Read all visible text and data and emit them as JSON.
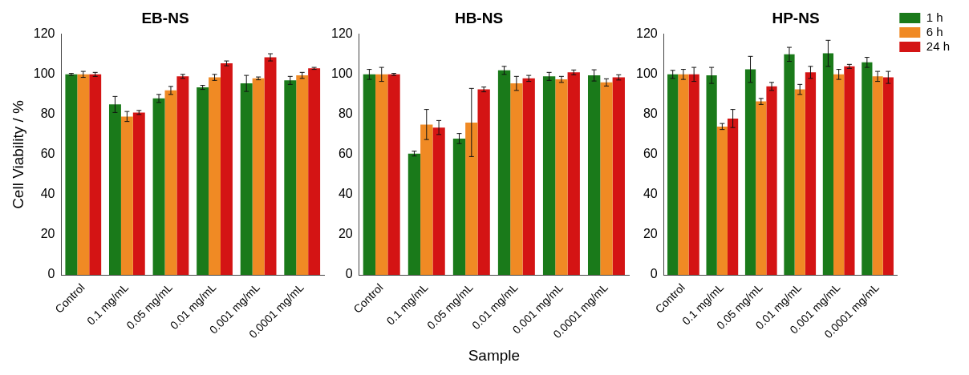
{
  "chart_data": [
    {
      "type": "bar",
      "title": "EB-NS",
      "ylabel": "Cell Viability / %",
      "categories": [
        "Control",
        "0.1 mg/mL",
        "0.05 mg/mL",
        "0.01 mg/mL",
        "0.001 mg/mL",
        "0.0001 mg/mL"
      ],
      "ylim": [
        0,
        120
      ],
      "yticks": [
        0,
        20,
        40,
        60,
        80,
        100,
        120
      ],
      "grid": false,
      "legend": false,
      "series": [
        {
          "color": "#1a7a1a",
          "values": [
            100,
            85,
            88,
            93.5,
            95.5,
            97
          ],
          "errors": [
            0.5,
            4,
            2,
            1,
            4,
            2
          ]
        },
        {
          "color": "#f08a24",
          "values": [
            100,
            79,
            92,
            98.5,
            98,
            99.5
          ],
          "errors": [
            1.5,
            2.5,
            2,
            1.5,
            0.7,
            1.5
          ]
        },
        {
          "color": "#d41414",
          "values": [
            100,
            81,
            99,
            105.5,
            108.5,
            103
          ],
          "errors": [
            1,
            1,
            1,
            1.2,
            1.8,
            0.5
          ]
        }
      ]
    },
    {
      "type": "bar",
      "title": "HB-NS",
      "xlabel": "Sample",
      "categories": [
        "Control",
        "0.1 mg/mL",
        "0.05 mg/mL",
        "0.01 mg/mL",
        "0.001 mg/mL",
        "0.0001 mg/mL"
      ],
      "ylim": [
        0,
        120
      ],
      "yticks": [
        0,
        20,
        40,
        60,
        80,
        100,
        120
      ],
      "grid": false,
      "legend": false,
      "series": [
        {
          "color": "#1a7a1a",
          "values": [
            100,
            60.5,
            68,
            102,
            99,
            99.5
          ],
          "errors": [
            2.5,
            1.2,
            2.5,
            2,
            2,
            2.8
          ]
        },
        {
          "color": "#f08a24",
          "values": [
            100,
            75,
            76,
            95.5,
            97.5,
            96
          ],
          "errors": [
            3.5,
            7.5,
            17,
            3.5,
            1.5,
            1.8
          ]
        },
        {
          "color": "#d41414",
          "values": [
            100,
            73.5,
            92.5,
            98,
            101,
            98.5
          ],
          "errors": [
            0.5,
            3.5,
            1.2,
            1.5,
            1.2,
            1.3
          ]
        }
      ]
    },
    {
      "type": "bar",
      "title": "HP-NS",
      "categories": [
        "Control",
        "0.1 mg/mL",
        "0.05 mg/mL",
        "0.01 mg/mL",
        "0.001 mg/mL",
        "0.0001 mg/mL"
      ],
      "ylim": [
        0,
        120
      ],
      "yticks": [
        0,
        20,
        40,
        60,
        80,
        100,
        120
      ],
      "grid": false,
      "legend": "top right",
      "series": [
        {
          "name": "1 h",
          "color": "#1a7a1a",
          "values": [
            100,
            99.5,
            102.5,
            110,
            110.5,
            106
          ],
          "errors": [
            2,
            4,
            6.5,
            3.5,
            6.5,
            2.5
          ]
        },
        {
          "name": "6 h",
          "color": "#f08a24",
          "values": [
            100,
            74,
            86.5,
            92.5,
            100,
            99
          ],
          "errors": [
            2.5,
            1.5,
            1.5,
            2.5,
            2.5,
            2.5
          ]
        },
        {
          "name": "24 h",
          "color": "#d41414",
          "values": [
            100,
            78,
            94,
            101,
            104,
            98.5
          ],
          "errors": [
            3.5,
            4.5,
            2,
            3,
            1,
            3
          ]
        }
      ]
    }
  ]
}
